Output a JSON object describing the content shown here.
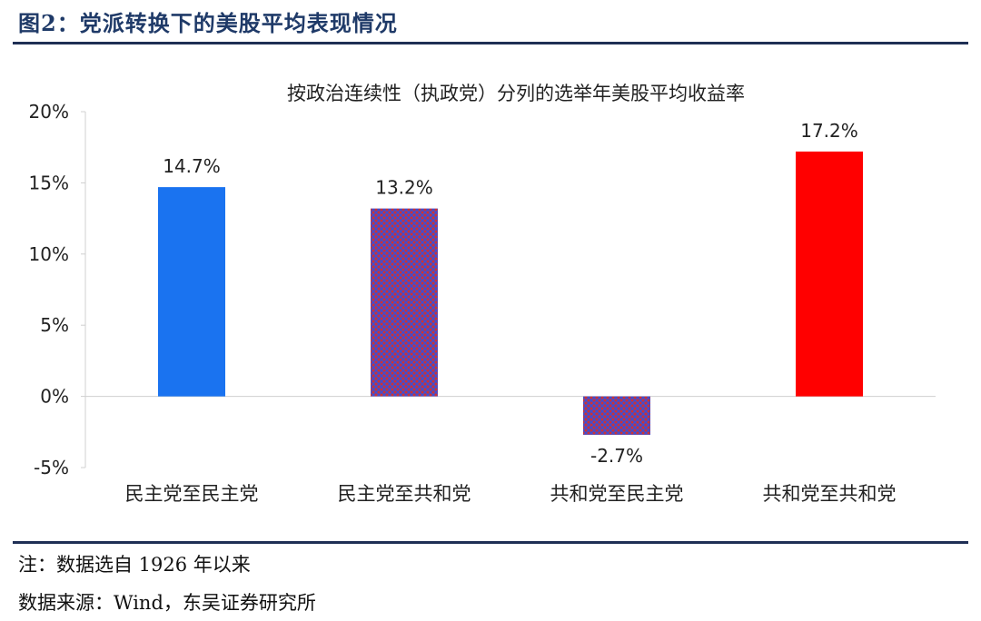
{
  "figure": {
    "title": "图2：党派转换下的美股平均表现情况",
    "note": "注：数据选自 1926 年以来",
    "source": "数据来源：Wind，东吴证券研究所"
  },
  "colors": {
    "title": "#1f3a68",
    "rule": "#1f2f55",
    "bar_blue": "#1a73f0",
    "bar_red": "#ff0000",
    "pattern_base": "#c8333a",
    "pattern_line": "#3b4fd6"
  },
  "chart_data": {
    "type": "bar",
    "title": "按政治连续性（执政党）分列的选举年美股平均收益率",
    "xlabel": "",
    "ylabel": "",
    "categories": [
      "民主党至民主党",
      "民主党至共和党",
      "共和党至民主党",
      "共和党至共和党"
    ],
    "values": [
      14.7,
      13.2,
      -2.7,
      17.2
    ],
    "value_labels": [
      "14.7%",
      "13.2%",
      "-2.7%",
      "17.2%"
    ],
    "fills": [
      "solid-blue",
      "pattern",
      "pattern",
      "solid-red"
    ],
    "ylim": [
      -5,
      20
    ],
    "yticks": [
      -5,
      0,
      5,
      10,
      15,
      20
    ],
    "ytick_labels": [
      "-5%",
      "0%",
      "5%",
      "10%",
      "15%",
      "20%"
    ],
    "grid": false,
    "legend": "none"
  }
}
